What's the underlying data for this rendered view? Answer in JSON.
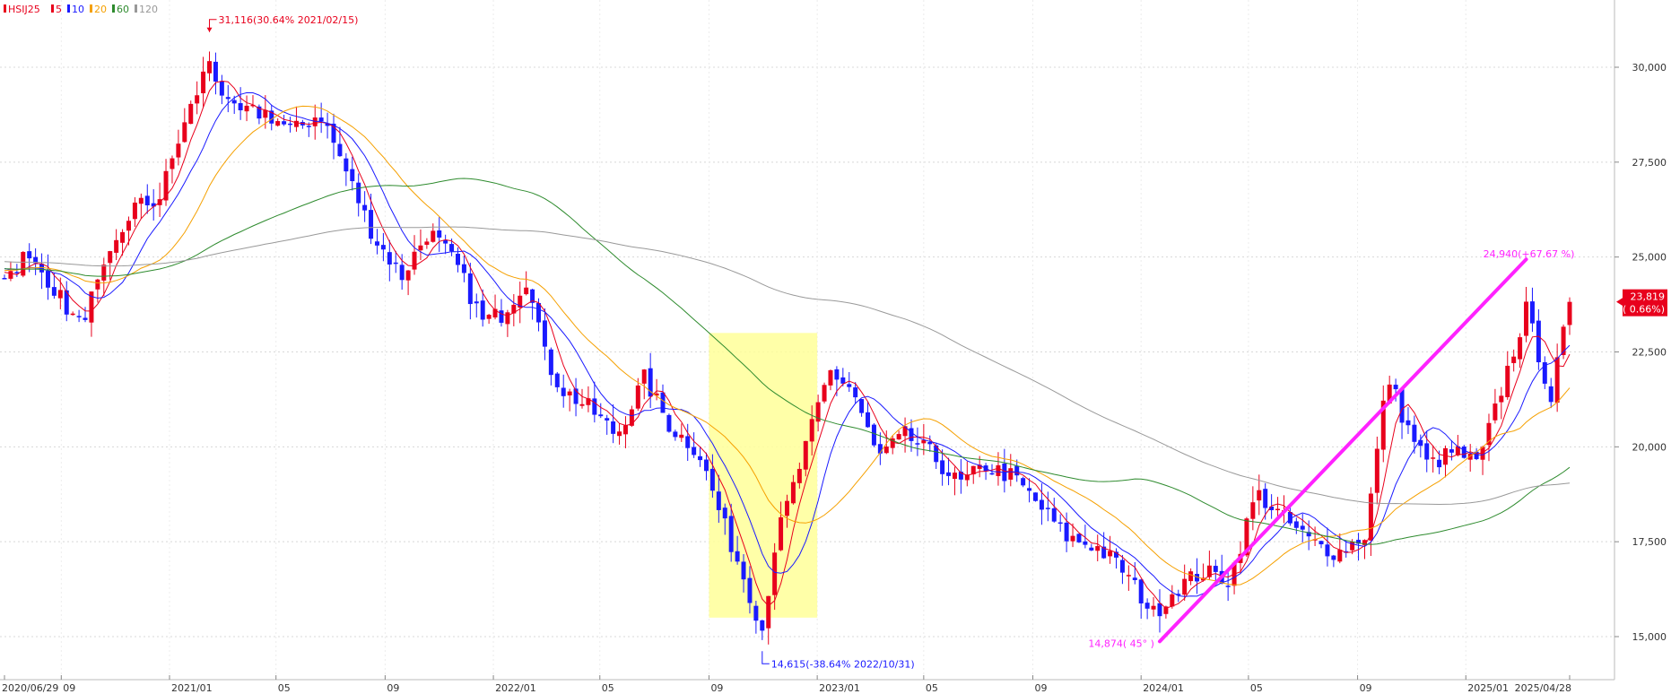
{
  "chart_data": {
    "type": "candlestick",
    "symbol": "HSIJ25",
    "legend": [
      {
        "label": "HSIJ25",
        "color": "#e8001c"
      },
      {
        "label": "5",
        "color": "#e8001c"
      },
      {
        "label": "10",
        "color": "#1a1aff"
      },
      {
        "label": "20",
        "color": "#f5a000"
      },
      {
        "label": "60",
        "color": "#2e8b2e"
      },
      {
        "label": "120",
        "color": "#999999"
      }
    ],
    "ylim": [
      14500,
      31800
    ],
    "y_ticks": [
      {
        "value": 30000,
        "label": "30,000"
      },
      {
        "value": 27500,
        "label": "27,500"
      },
      {
        "value": 25000,
        "label": "25,000"
      },
      {
        "value": 22500,
        "label": "22,500"
      },
      {
        "value": 20000,
        "label": "20,000"
      },
      {
        "value": 17500,
        "label": "17,500"
      },
      {
        "value": 15000,
        "label": "15,000"
      }
    ],
    "x_ticks": [
      {
        "date": "2020-06-29",
        "label": "2020/06/29"
      },
      {
        "date": "2020-09-01",
        "label": "09"
      },
      {
        "date": "2021-01-01",
        "label": "2021/01"
      },
      {
        "date": "2021-05-01",
        "label": "05"
      },
      {
        "date": "2021-09-01",
        "label": "09"
      },
      {
        "date": "2022-01-01",
        "label": "2022/01"
      },
      {
        "date": "2022-05-01",
        "label": "05"
      },
      {
        "date": "2022-09-01",
        "label": "09"
      },
      {
        "date": "2023-01-01",
        "label": "2023/01"
      },
      {
        "date": "2023-05-01",
        "label": "05"
      },
      {
        "date": "2023-09-01",
        "label": "09"
      },
      {
        "date": "2024-01-01",
        "label": "2024/01"
      },
      {
        "date": "2024-05-01",
        "label": "05"
      },
      {
        "date": "2024-09-01",
        "label": "09"
      },
      {
        "date": "2025-01-01",
        "label": "2025/01"
      },
      {
        "date": "2025-04-28",
        "label": "2025/04/28"
      }
    ],
    "close_anchors": [
      [
        "2020-06-29",
        24400
      ],
      [
        "2020-07-20",
        25000
      ],
      [
        "2020-08-15",
        24500
      ],
      [
        "2020-09-20",
        23200
      ],
      [
        "2020-10-20",
        24600
      ],
      [
        "2020-11-20",
        26300
      ],
      [
        "2020-12-20",
        26500
      ],
      [
        "2021-01-10",
        28000
      ],
      [
        "2021-02-15",
        30200
      ],
      [
        "2021-03-10",
        28800
      ],
      [
        "2021-04-20",
        28800
      ],
      [
        "2021-05-20",
        28300
      ],
      [
        "2021-06-20",
        28800
      ],
      [
        "2021-07-20",
        27200
      ],
      [
        "2021-08-20",
        25500
      ],
      [
        "2021-09-20",
        24500
      ],
      [
        "2021-10-20",
        25700
      ],
      [
        "2021-11-20",
        24800
      ],
      [
        "2021-12-20",
        23300
      ],
      [
        "2022-01-10",
        23500
      ],
      [
        "2022-02-10",
        24500
      ],
      [
        "2022-03-01",
        22300
      ],
      [
        "2022-03-20",
        21500
      ],
      [
        "2022-04-20",
        21000
      ],
      [
        "2022-05-20",
        20300
      ],
      [
        "2022-06-20",
        21800
      ],
      [
        "2022-07-20",
        20500
      ],
      [
        "2022-08-20",
        19900
      ],
      [
        "2022-09-20",
        17800
      ],
      [
        "2022-10-10",
        16600
      ],
      [
        "2022-10-31",
        15200
      ],
      [
        "2022-11-15",
        17500
      ],
      [
        "2022-12-10",
        19300
      ],
      [
        "2023-01-15",
        22000
      ],
      [
        "2023-02-10",
        21500
      ],
      [
        "2023-03-10",
        19700
      ],
      [
        "2023-04-10",
        20300
      ],
      [
        "2023-05-10",
        19800
      ],
      [
        "2023-06-10",
        19000
      ],
      [
        "2023-07-10",
        19500
      ],
      [
        "2023-08-10",
        19200
      ],
      [
        "2023-09-10",
        18400
      ],
      [
        "2023-10-10",
        17600
      ],
      [
        "2023-11-10",
        17400
      ],
      [
        "2023-12-10",
        16800
      ],
      [
        "2024-01-15",
        15600
      ],
      [
        "2024-02-10",
        16300
      ],
      [
        "2024-03-10",
        16700
      ],
      [
        "2024-04-10",
        16500
      ],
      [
        "2024-05-10",
        18800
      ],
      [
        "2024-06-10",
        18100
      ],
      [
        "2024-07-10",
        17500
      ],
      [
        "2024-08-10",
        17200
      ],
      [
        "2024-09-10",
        17700
      ],
      [
        "2024-10-05",
        21900
      ],
      [
        "2024-10-25",
        20600
      ],
      [
        "2024-11-20",
        19500
      ],
      [
        "2024-12-20",
        19900
      ],
      [
        "2025-01-15",
        19500
      ],
      [
        "2025-02-10",
        21500
      ],
      [
        "2025-03-10",
        23600
      ],
      [
        "2025-04-07",
        21300
      ],
      [
        "2025-04-28",
        23819
      ]
    ],
    "ma": [
      {
        "name": "5",
        "color": "#e8001c",
        "period": 5
      },
      {
        "name": "10",
        "color": "#1a1aff",
        "period": 10
      },
      {
        "name": "20",
        "color": "#f5a000",
        "period": 20
      },
      {
        "name": "60",
        "color": "#2e8b2e",
        "period": 60
      },
      {
        "name": "120",
        "color": "#999999",
        "period": 120
      }
    ],
    "annotations": {
      "high": {
        "label": "31,116(30.64% 2021/02/15)",
        "date": "2021-02-15",
        "value": 31116,
        "color": "#e8001c"
      },
      "low": {
        "label": "14,615(-38.64% 2022/10/31)",
        "date": "2022-10-31",
        "value": 14615,
        "color": "#1a1aff"
      },
      "trend_end": {
        "label": "24,940(+67.67 %)",
        "date": "2025-03-10",
        "value": 24940,
        "color": "#ff22ff"
      },
      "trend_start": {
        "label": "14,874( 45° )",
        "date": "2024-01-22",
        "value": 14874,
        "color": "#ff22ff"
      },
      "last_price": {
        "label": "23,819",
        "date": "2025-04-28",
        "value": 23819,
        "color": "#e8001c"
      },
      "last_change": {
        "label": "( 0.66%)",
        "color": "#e8001c"
      }
    },
    "highlight_box": {
      "start": "2022-09-01",
      "end": "2023-01-01",
      "low": 15500,
      "high": 23000,
      "color": "#ffff99"
    },
    "grid": true
  }
}
